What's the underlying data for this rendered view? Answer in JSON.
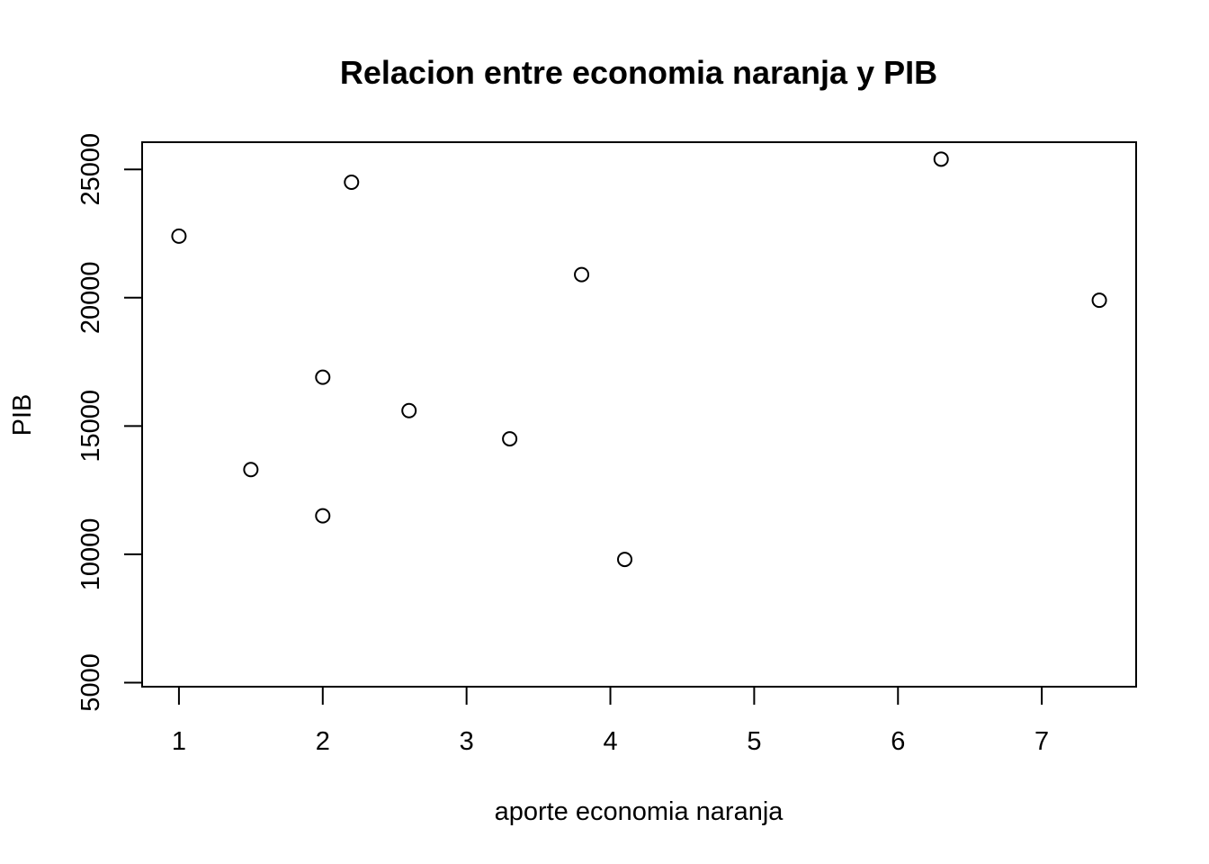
{
  "chart_data": {
    "type": "scatter",
    "title": "Relacion entre economia naranja y PIB",
    "xlabel": "aporte economia naranja",
    "ylabel": "PIB",
    "x_ticks": [
      1,
      2,
      3,
      4,
      5,
      6,
      7
    ],
    "y_ticks": [
      5000,
      10000,
      15000,
      20000,
      25000
    ],
    "xlim": [
      0.744,
      7.656
    ],
    "ylim": [
      4840,
      26060
    ],
    "grid": false,
    "marker": "open-circle",
    "points": [
      {
        "x": 1.0,
        "y": 22400
      },
      {
        "x": 1.5,
        "y": 13300
      },
      {
        "x": 2.0,
        "y": 16900
      },
      {
        "x": 2.0,
        "y": 11500
      },
      {
        "x": 2.2,
        "y": 24500
      },
      {
        "x": 2.6,
        "y": 15600
      },
      {
        "x": 3.3,
        "y": 14500
      },
      {
        "x": 3.8,
        "y": 20900
      },
      {
        "x": 4.1,
        "y": 9800
      },
      {
        "x": 6.3,
        "y": 25400
      },
      {
        "x": 7.4,
        "y": 19900
      }
    ]
  }
}
